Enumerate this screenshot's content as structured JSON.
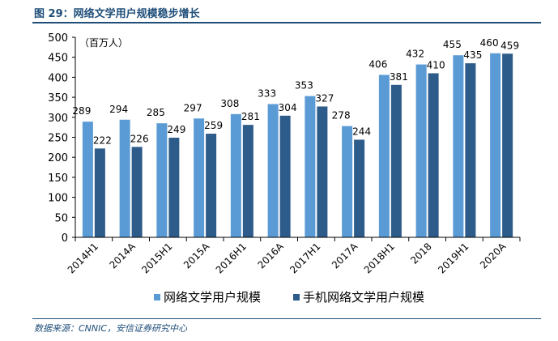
{
  "header": {
    "title": "图 29：网络文学用户规模稳步增长"
  },
  "source": "数据来源：CNNIC，安信证券研究中心",
  "chart_data": {
    "type": "bar",
    "unit_label": "（百万人）",
    "categories": [
      "2014H1",
      "2014A",
      "2015H1",
      "2015A",
      "2016H1",
      "2016A",
      "2017H1",
      "2017A",
      "2018H1",
      "2018",
      "2019H1",
      "2020A"
    ],
    "series": [
      {
        "name": "网络文学用户规模",
        "color": "#5b9bd5",
        "values": [
          289,
          294,
          285,
          297,
          308,
          333,
          353,
          278,
          406,
          432,
          455,
          460
        ]
      },
      {
        "name": "手机网络文学用户规模",
        "color": "#2e5c8a",
        "values": [
          222,
          226,
          249,
          259,
          281,
          304,
          327,
          244,
          381,
          410,
          435,
          459
        ]
      }
    ],
    "ylim": [
      0,
      500
    ],
    "yticks": [
      0,
      50,
      100,
      150,
      200,
      250,
      300,
      350,
      400,
      450,
      500
    ],
    "legend_position": "bottom"
  }
}
